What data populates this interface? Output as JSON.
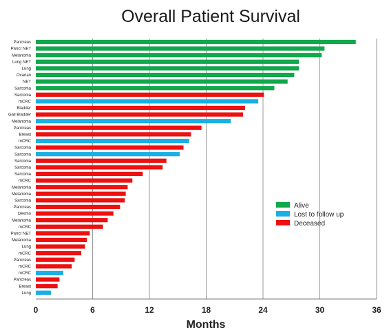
{
  "chart_data": {
    "type": "bar",
    "orientation": "horizontal",
    "title": "Overall Patient Survival",
    "xlabel": "Months",
    "ylabel": "",
    "xlim": [
      0,
      36
    ],
    "x_ticks": [
      "0",
      "6",
      "12",
      "18",
      "24",
      "30",
      "36"
    ],
    "x_tick_values": [
      0,
      6,
      12,
      18,
      24,
      30,
      36
    ],
    "grid": "vertical",
    "legend_position": "right-middle",
    "legend": [
      {
        "key": "alive",
        "label": "Alive",
        "color": "#12A84C"
      },
      {
        "key": "lost",
        "label": "Lost to follow up",
        "color": "#1AAFE6"
      },
      {
        "key": "deceased",
        "label": "Deceased",
        "color": "#EE1111"
      }
    ],
    "bars": [
      {
        "label": "Pancreas",
        "value": 33.8,
        "status": "alive"
      },
      {
        "label": "Pancr NET",
        "value": 30.5,
        "status": "alive"
      },
      {
        "label": "Melanoma",
        "value": 30.2,
        "status": "alive"
      },
      {
        "label": "Lung NET",
        "value": 27.8,
        "status": "alive"
      },
      {
        "label": "Lung",
        "value": 27.8,
        "status": "alive"
      },
      {
        "label": "Ovarian",
        "value": 27.3,
        "status": "alive"
      },
      {
        "label": "NET",
        "value": 26.6,
        "status": "alive"
      },
      {
        "label": "Sarcoma",
        "value": 25.2,
        "status": "alive"
      },
      {
        "label": "Sarcoma",
        "value": 24.1,
        "status": "deceased"
      },
      {
        "label": "mCRC",
        "value": 23.5,
        "status": "lost"
      },
      {
        "label": "Bladder",
        "value": 22.1,
        "status": "deceased"
      },
      {
        "label": "Gall Bladder",
        "value": 21.9,
        "status": "deceased"
      },
      {
        "label": "Melanoma",
        "value": 20.6,
        "status": "lost"
      },
      {
        "label": "Pancreas",
        "value": 17.5,
        "status": "deceased"
      },
      {
        "label": "Breast",
        "value": 16.4,
        "status": "deceased"
      },
      {
        "label": "mCRC",
        "value": 16.2,
        "status": "lost"
      },
      {
        "label": "Sarcoma",
        "value": 15.6,
        "status": "deceased"
      },
      {
        "label": "Sarcoma",
        "value": 15.2,
        "status": "lost"
      },
      {
        "label": "Sarcoma",
        "value": 13.8,
        "status": "deceased"
      },
      {
        "label": "Sarcoma",
        "value": 13.4,
        "status": "deceased"
      },
      {
        "label": "Sarcoma",
        "value": 11.3,
        "status": "deceased"
      },
      {
        "label": "mCRC",
        "value": 10.2,
        "status": "deceased"
      },
      {
        "label": "Melanoma",
        "value": 9.7,
        "status": "deceased"
      },
      {
        "label": "Melanoma",
        "value": 9.5,
        "status": "deceased"
      },
      {
        "label": "Sarcoma",
        "value": 9.4,
        "status": "deceased"
      },
      {
        "label": "Pancreas",
        "value": 8.9,
        "status": "deceased"
      },
      {
        "label": "Desmo",
        "value": 8.2,
        "status": "deceased"
      },
      {
        "label": "Melanoma",
        "value": 7.6,
        "status": "deceased"
      },
      {
        "label": "mCRC",
        "value": 7.1,
        "status": "deceased"
      },
      {
        "label": "Pancr NET",
        "value": 5.7,
        "status": "deceased"
      },
      {
        "label": "Melanoma",
        "value": 5.4,
        "status": "deceased"
      },
      {
        "label": "Lung",
        "value": 5.2,
        "status": "deceased"
      },
      {
        "label": "mCRC",
        "value": 4.8,
        "status": "deceased"
      },
      {
        "label": "Pancreas",
        "value": 4.1,
        "status": "deceased"
      },
      {
        "label": "mCRC",
        "value": 3.8,
        "status": "deceased"
      },
      {
        "label": "mCRC",
        "value": 2.9,
        "status": "lost"
      },
      {
        "label": "Pancreas",
        "value": 2.5,
        "status": "deceased"
      },
      {
        "label": "Breast",
        "value": 2.3,
        "status": "deceased"
      },
      {
        "label": "Lung",
        "value": 1.6,
        "status": "lost"
      }
    ]
  }
}
